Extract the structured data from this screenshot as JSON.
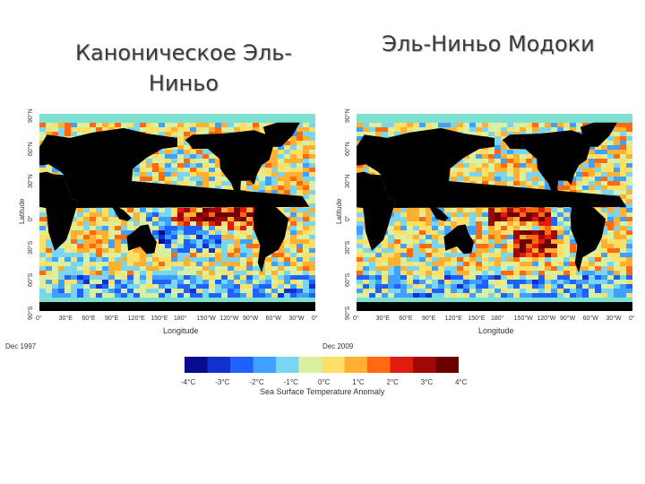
{
  "titles": {
    "left": "Каноническое Эль-Ниньо",
    "right": "Эль-Ниньо Модоки"
  },
  "maps": {
    "left": {
      "date": "Dec 1997",
      "xlabel": "Longitude",
      "ylabel": "Latitude",
      "lon_ticks": [
        "0°",
        "30°E",
        "60°E",
        "90°E",
        "120°E",
        "150°E",
        "180°",
        "150°W",
        "120°W",
        "90°W",
        "60°W",
        "30°W",
        "0°"
      ],
      "lat_ticks": [
        "90°N",
        "60°N",
        "30°N",
        "0°",
        "30°S",
        "60°S",
        "90°S"
      ],
      "anomaly_pattern": "eastern-pacific-warm"
    },
    "right": {
      "date": "Dec 2009",
      "xlabel": "Longitude",
      "ylabel": "Latitude",
      "lon_ticks": [
        "0°",
        "30°E",
        "60°E",
        "90°E",
        "120°E",
        "150°E",
        "180°",
        "150°W",
        "120°W",
        "90°W",
        "60°W",
        "30°W",
        "0°"
      ],
      "lat_ticks": [
        "90°N",
        "60°N",
        "30°N",
        "0°",
        "30°S",
        "60°S",
        "90°S"
      ],
      "anomaly_pattern": "central-pacific-warm"
    }
  },
  "colorbar": {
    "title": "Sea Surface Temperature Anomaly",
    "ticks": [
      "-4°C",
      "-3°C",
      "-2°C",
      "-1°C",
      "0°C",
      "1°C",
      "2°C",
      "3°C",
      "4°C"
    ],
    "range": [
      -4,
      4
    ],
    "colors": [
      "#0a0a8c",
      "#1030d0",
      "#2060ff",
      "#3fa0ff",
      "#7ad6f0",
      "#d8f0a0",
      "#ffe066",
      "#ffb030",
      "#ff6a10",
      "#e01c0c",
      "#a00808",
      "#6a0000"
    ]
  },
  "palette": {
    "land": "#000000",
    "ice": "#7ee0d0"
  }
}
